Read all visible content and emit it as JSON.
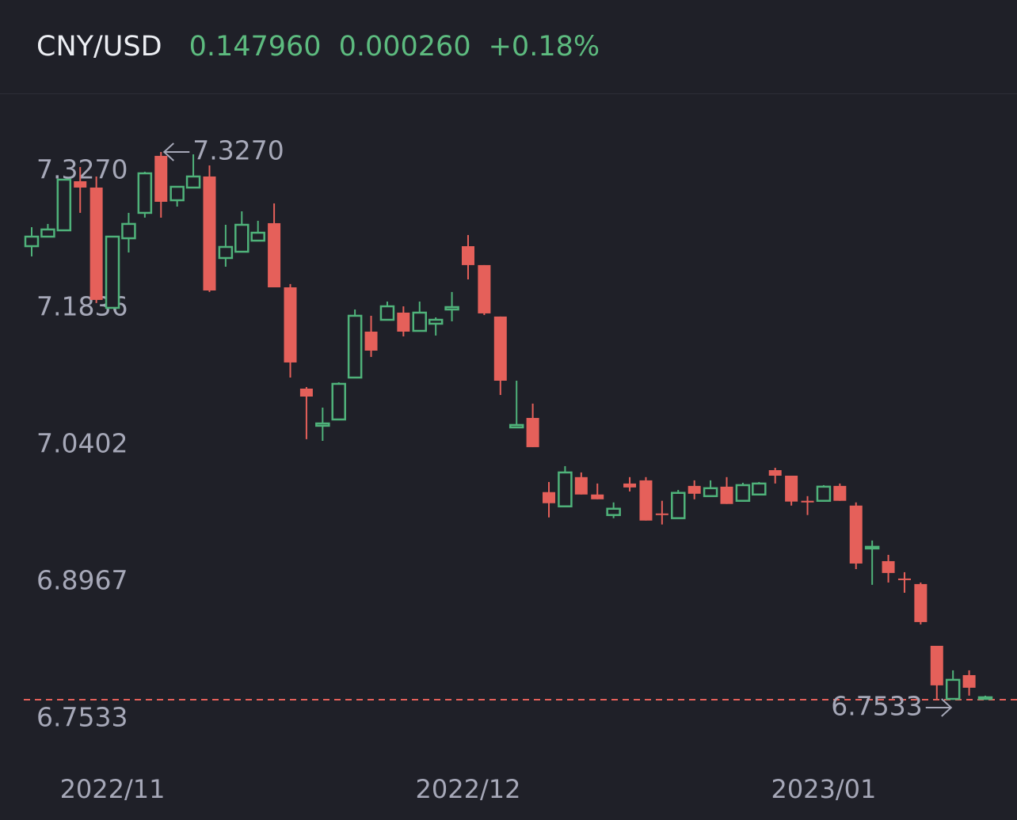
{
  "header": {
    "symbol": "CNY/USD",
    "price": "0.147960",
    "change": "0.000260",
    "change_percent": "+0.18%"
  },
  "chart_data": {
    "type": "candlestick",
    "categories": [
      null,
      null,
      null,
      null,
      null,
      "2022/11",
      null,
      null,
      null,
      null,
      null,
      null,
      null,
      null,
      null,
      null,
      null,
      null,
      null,
      null,
      null,
      null,
      null,
      null,
      null,
      null,
      null,
      "2022/12",
      null,
      null,
      null,
      null,
      null,
      null,
      null,
      null,
      null,
      null,
      null,
      null,
      null,
      null,
      null,
      null,
      null,
      null,
      null,
      null,
      null,
      "2023/01",
      null,
      null,
      null,
      null,
      null,
      null,
      null,
      null,
      null,
      null
    ],
    "open": [
      7.2283,
      7.2383,
      7.2449,
      7.2963,
      7.2897,
      7.1637,
      7.2366,
      7.2632,
      7.3229,
      7.2764,
      7.2897,
      7.3013,
      7.2159,
      7.2225,
      7.2341,
      7.2524,
      7.1852,
      7.0791,
      7.0402,
      7.0468,
      7.0907,
      7.1388,
      7.1512,
      7.1587,
      7.1396,
      7.1471,
      7.162,
      7.2283,
      7.2085,
      7.1546,
      7.0385,
      7.0484,
      6.9707,
      6.9558,
      6.9864,
      6.9682,
      6.9467,
      6.9797,
      6.983,
      6.9483,
      6.9434,
      6.9772,
      6.9665,
      6.9764,
      6.9616,
      6.9682,
      6.9937,
      6.9879,
      6.9616,
      6.9616,
      6.9772,
      6.9566,
      6.9117,
      6.8984,
      6.8802,
      6.8744,
      6.8097,
      6.7541,
      6.779,
      6.7541
    ],
    "high": [
      7.2482,
      7.2516,
      7.298,
      7.3112,
      7.3013,
      7.2383,
      7.2632,
      7.3063,
      7.327,
      7.2905,
      7.3245,
      7.3129,
      7.2507,
      7.2648,
      7.2549,
      7.2731,
      7.1886,
      7.0808,
      7.0592,
      7.0857,
      7.162,
      7.1554,
      7.1703,
      7.1653,
      7.1703,
      7.1537,
      7.1803,
      7.24,
      7.2085,
      7.1546,
      7.0874,
      7.0634,
      6.9813,
      6.9979,
      6.9913,
      6.9797,
      6.9599,
      6.9864,
      6.9864,
      6.9616,
      6.973,
      6.983,
      6.983,
      6.9864,
      6.9805,
      6.9813,
      6.9962,
      6.9879,
      6.9665,
      6.978,
      6.9797,
      6.9599,
      6.92,
      6.905,
      6.8868,
      6.876,
      6.8097,
      6.784,
      6.784,
      6.7575
    ],
    "low": [
      7.2176,
      7.2383,
      7.2449,
      7.2632,
      7.1687,
      7.1637,
      7.2217,
      7.2582,
      7.2582,
      7.2698,
      7.2897,
      7.1803,
      7.2068,
      7.2225,
      7.2341,
      7.1852,
      7.0907,
      7.0261,
      7.0244,
      7.0468,
      7.0907,
      7.1123,
      7.1512,
      7.1338,
      7.1396,
      7.1347,
      7.1496,
      7.1935,
      7.1562,
      7.0725,
      7.0385,
      7.0178,
      6.9442,
      6.9558,
      6.9682,
      6.9632,
      6.9434,
      6.9714,
      6.9409,
      6.9368,
      6.9434,
      6.9632,
      6.9665,
      6.9583,
      6.9616,
      6.9682,
      6.9797,
      6.9566,
      6.9467,
      6.9616,
      6.9616,
      6.8901,
      6.8736,
      6.876,
      6.8653,
      6.8321,
      6.7533,
      6.7541,
      6.7575,
      6.7533
    ],
    "close": [
      7.2383,
      7.2458,
      7.298,
      7.2897,
      7.172,
      7.2383,
      7.2516,
      7.3046,
      7.2748,
      7.2905,
      7.3013,
      7.1819,
      7.2275,
      7.2507,
      7.2424,
      7.1852,
      7.1065,
      7.0708,
      7.0426,
      7.0841,
      7.1554,
      7.1189,
      7.1653,
      7.1388,
      7.1587,
      7.1512,
      7.1645,
      7.2085,
      7.1579,
      7.0874,
      7.041,
      7.0178,
      6.9591,
      6.9913,
      6.9682,
      6.9632,
      6.9533,
      6.9756,
      6.9409,
      6.9475,
      6.9699,
      6.969,
      6.9748,
      6.9583,
      6.978,
      6.9797,
      6.9879,
      6.9608,
      6.9599,
      6.9764,
      6.9616,
      6.8959,
      6.9134,
      6.886,
      6.8785,
      6.8346,
      6.7683,
      6.7741,
      6.7658,
      6.7558
    ],
    "up_color": "#4fb27a",
    "down_color": "#e5605a",
    "ylim": [
      6.6911,
      7.3875
    ],
    "yticks": [
      {
        "value": 7.327,
        "label": "7.3270"
      },
      7.1836,
      7.0402,
      6.8967,
      6.7533
    ],
    "annotations": [
      {
        "label": "7.3270",
        "value": 7.327
      },
      {
        "label": "6.7533",
        "value": 6.7533
      }
    ],
    "hline": {
      "value": 6.7533,
      "color": "#e5605a"
    }
  }
}
